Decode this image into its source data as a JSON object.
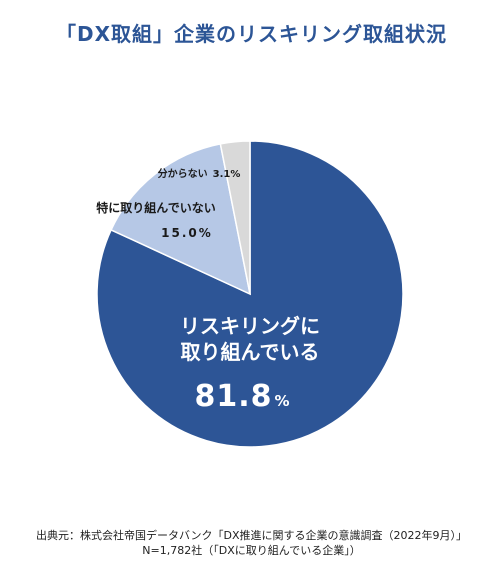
{
  "chart_data": {
    "type": "pie",
    "title": "「DX取組」企業のリスキリング取組状況",
    "slices": [
      {
        "label_lines": [
          "リスキリングに",
          "取り組んでいる"
        ],
        "value": 81.8,
        "value_text": "81.8",
        "unit": "%",
        "color": "#2d5596"
      },
      {
        "label_lines": [
          "特に取り組んでいない"
        ],
        "value": 15.0,
        "value_text": "15.0%",
        "unit": "",
        "color": "#b6c8e6"
      },
      {
        "label_lines": [
          "分からない"
        ],
        "value": 3.1,
        "value_text": "3.1%",
        "unit": "",
        "color": "#d9d9d9"
      }
    ],
    "start": "12 o'clock",
    "direction": "clockwise",
    "legend": "none"
  },
  "source": {
    "line1": "出典元：株式会社帝国データバンク「DX推進に関する企業の意識調査（2022年9月）」",
    "line2": "N=1,782社（「DXに取り組んでいる企業」）"
  }
}
